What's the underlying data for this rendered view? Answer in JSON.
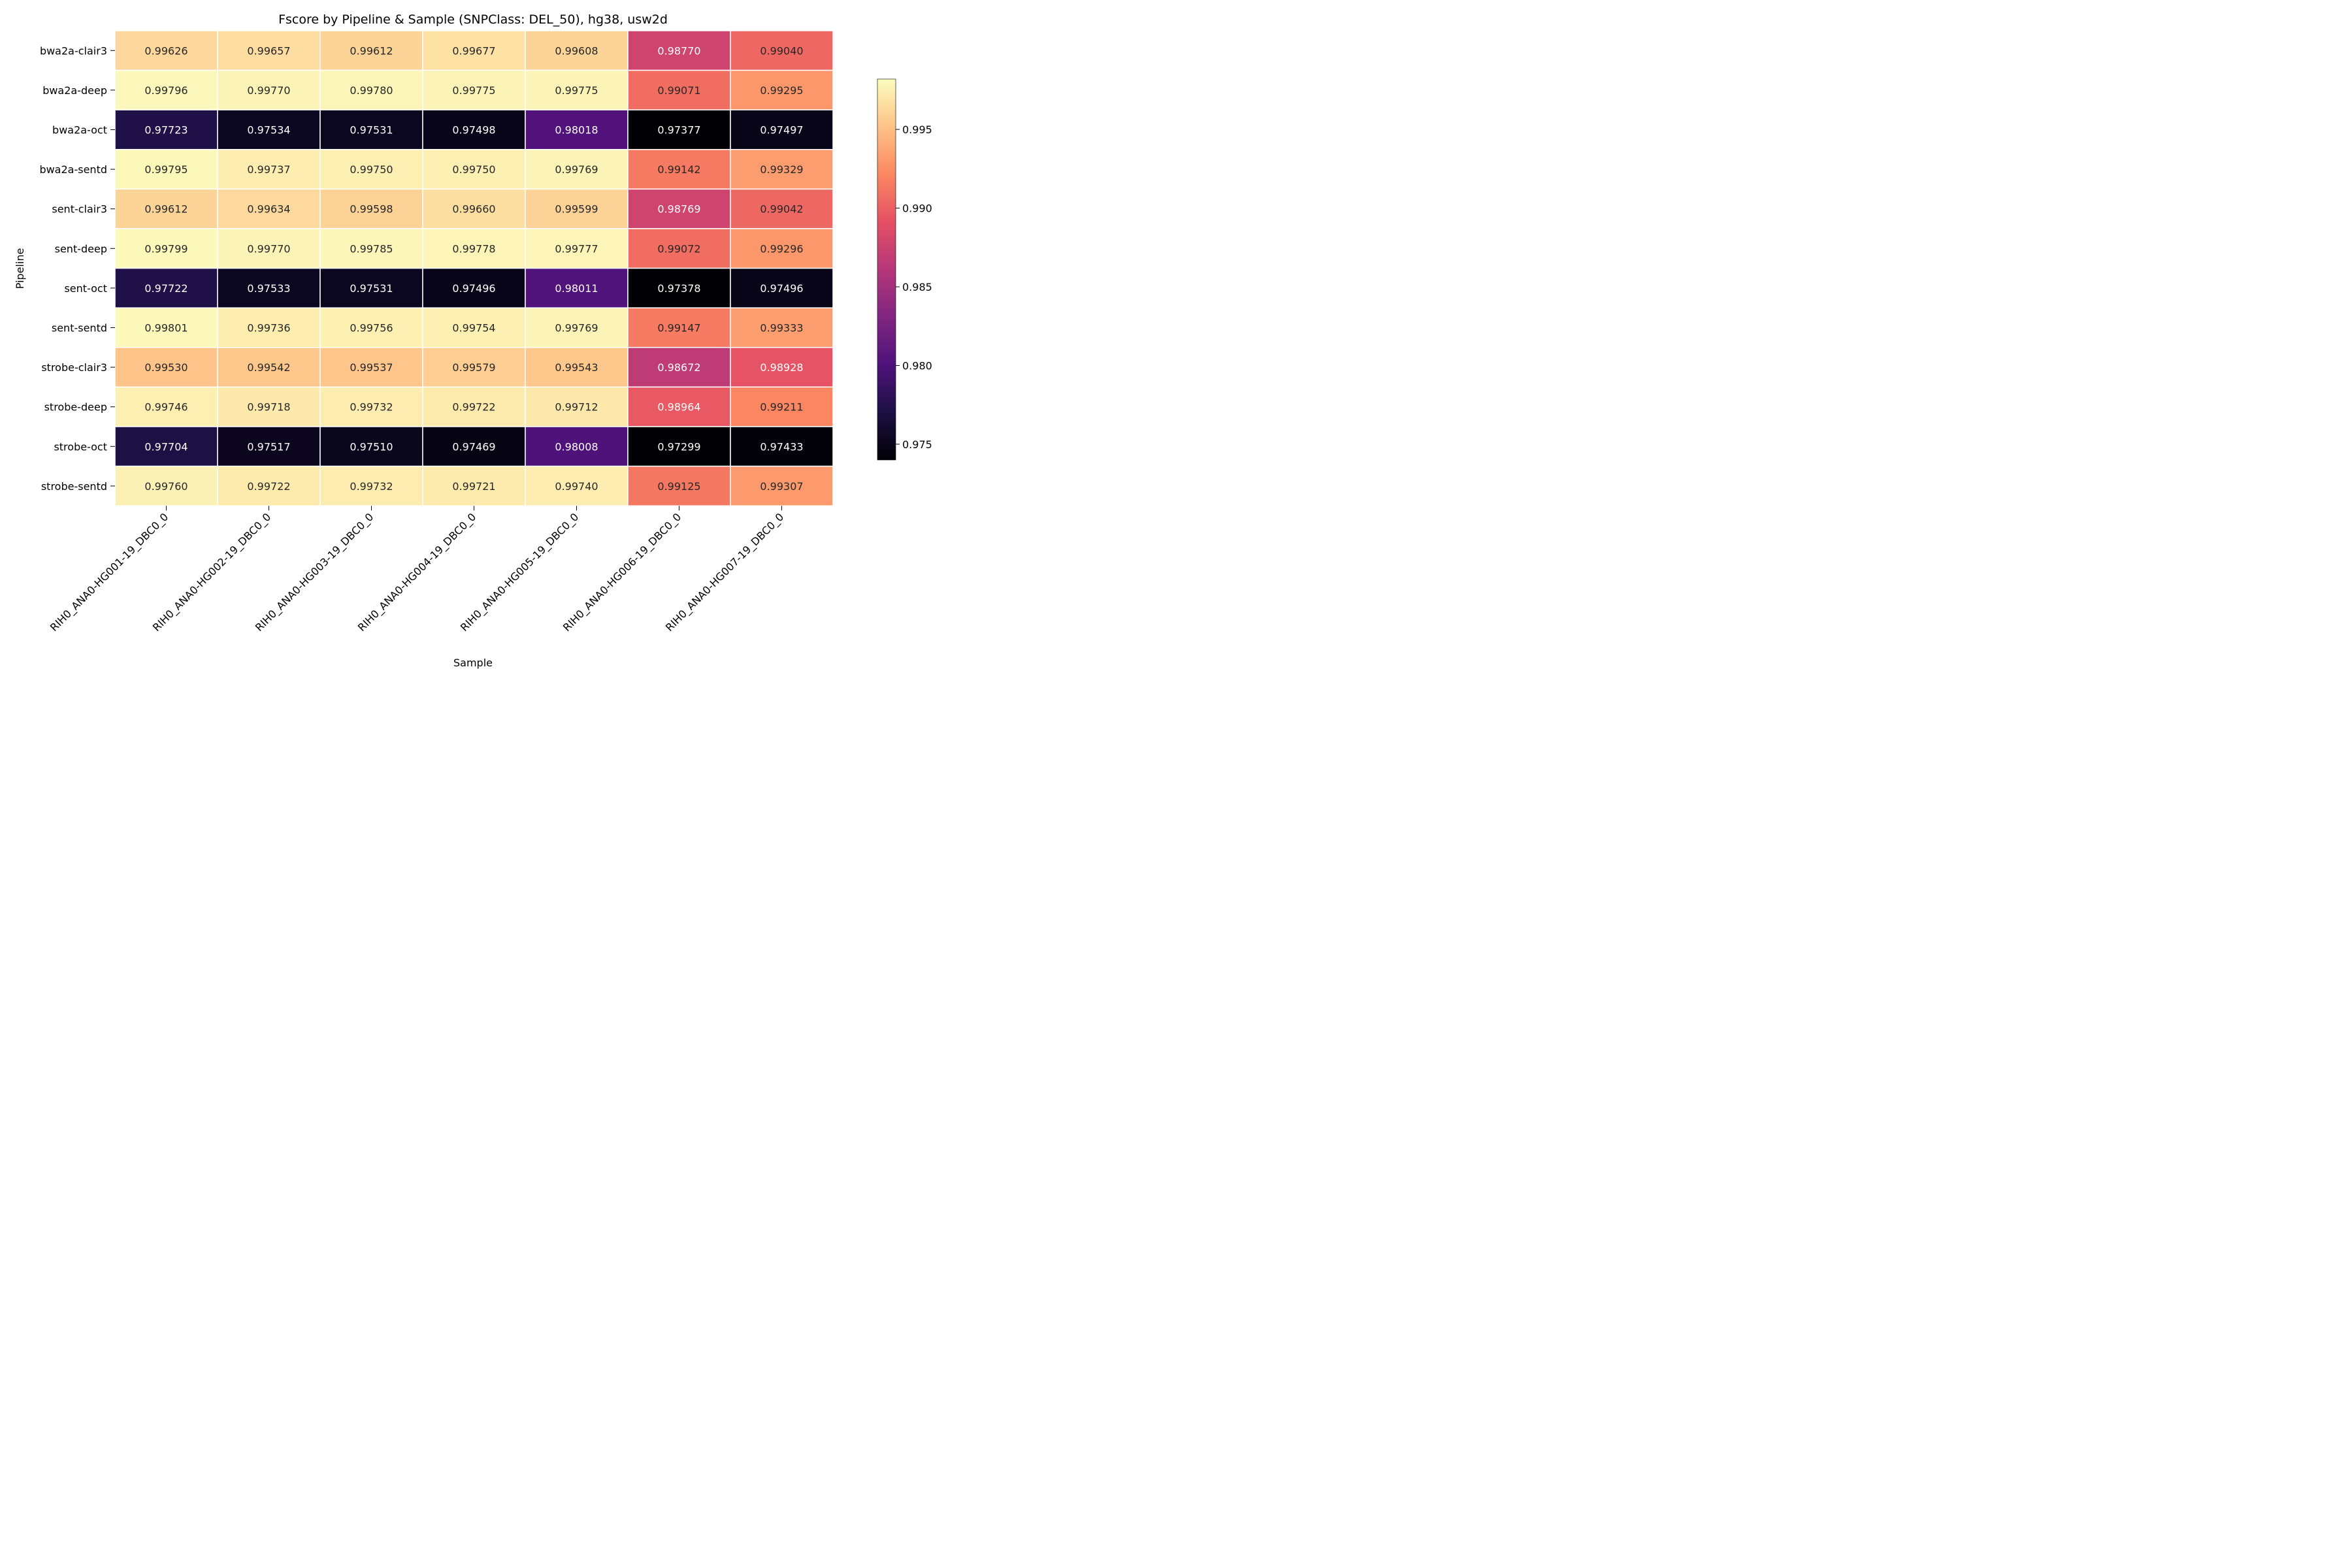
{
  "chart_data": {
    "type": "heatmap",
    "title": "Fscore by Pipeline & Sample (SNPClass: DEL_50), hg38, usw2d",
    "xlabel": "Sample",
    "ylabel": "Pipeline",
    "colormap": "magma",
    "color_range": [
      0.974,
      0.9982
    ],
    "colorbar_ticks": [
      "0.975",
      "0.980",
      "0.985",
      "0.990",
      "0.995"
    ],
    "columns": [
      "RIH0_ANA0-HG001-19_DBC0_0",
      "RIH0_ANA0-HG002-19_DBC0_0",
      "RIH0_ANA0-HG003-19_DBC0_0",
      "RIH0_ANA0-HG004-19_DBC0_0",
      "RIH0_ANA0-HG005-19_DBC0_0",
      "RIH0_ANA0-HG006-19_DBC0_0",
      "RIH0_ANA0-HG007-19_DBC0_0"
    ],
    "rows": [
      {
        "name": "bwa2a-clair3",
        "values": [
          "0.99626",
          "0.99657",
          "0.99612",
          "0.99677",
          "0.99608",
          "0.98770",
          "0.99040"
        ]
      },
      {
        "name": "bwa2a-deep",
        "values": [
          "0.99796",
          "0.99770",
          "0.99780",
          "0.99775",
          "0.99775",
          "0.99071",
          "0.99295"
        ]
      },
      {
        "name": "bwa2a-oct",
        "values": [
          "0.97723",
          "0.97534",
          "0.97531",
          "0.97498",
          "0.98018",
          "0.97377",
          "0.97497"
        ]
      },
      {
        "name": "bwa2a-sentd",
        "values": [
          "0.99795",
          "0.99737",
          "0.99750",
          "0.99750",
          "0.99769",
          "0.99142",
          "0.99329"
        ]
      },
      {
        "name": "sent-clair3",
        "values": [
          "0.99612",
          "0.99634",
          "0.99598",
          "0.99660",
          "0.99599",
          "0.98769",
          "0.99042"
        ]
      },
      {
        "name": "sent-deep",
        "values": [
          "0.99799",
          "0.99770",
          "0.99785",
          "0.99778",
          "0.99777",
          "0.99072",
          "0.99296"
        ]
      },
      {
        "name": "sent-oct",
        "values": [
          "0.97722",
          "0.97533",
          "0.97531",
          "0.97496",
          "0.98011",
          "0.97378",
          "0.97496"
        ]
      },
      {
        "name": "sent-sentd",
        "values": [
          "0.99801",
          "0.99736",
          "0.99756",
          "0.99754",
          "0.99769",
          "0.99147",
          "0.99333"
        ]
      },
      {
        "name": "strobe-clair3",
        "values": [
          "0.99530",
          "0.99542",
          "0.99537",
          "0.99579",
          "0.99543",
          "0.98672",
          "0.98928"
        ]
      },
      {
        "name": "strobe-deep",
        "values": [
          "0.99746",
          "0.99718",
          "0.99732",
          "0.99722",
          "0.99712",
          "0.98964",
          "0.99211"
        ]
      },
      {
        "name": "strobe-oct",
        "values": [
          "0.97704",
          "0.97517",
          "0.97510",
          "0.97469",
          "0.98008",
          "0.97299",
          "0.97433"
        ]
      },
      {
        "name": "strobe-sentd",
        "values": [
          "0.99760",
          "0.99722",
          "0.99732",
          "0.99721",
          "0.99740",
          "0.99125",
          "0.99307"
        ]
      }
    ]
  }
}
